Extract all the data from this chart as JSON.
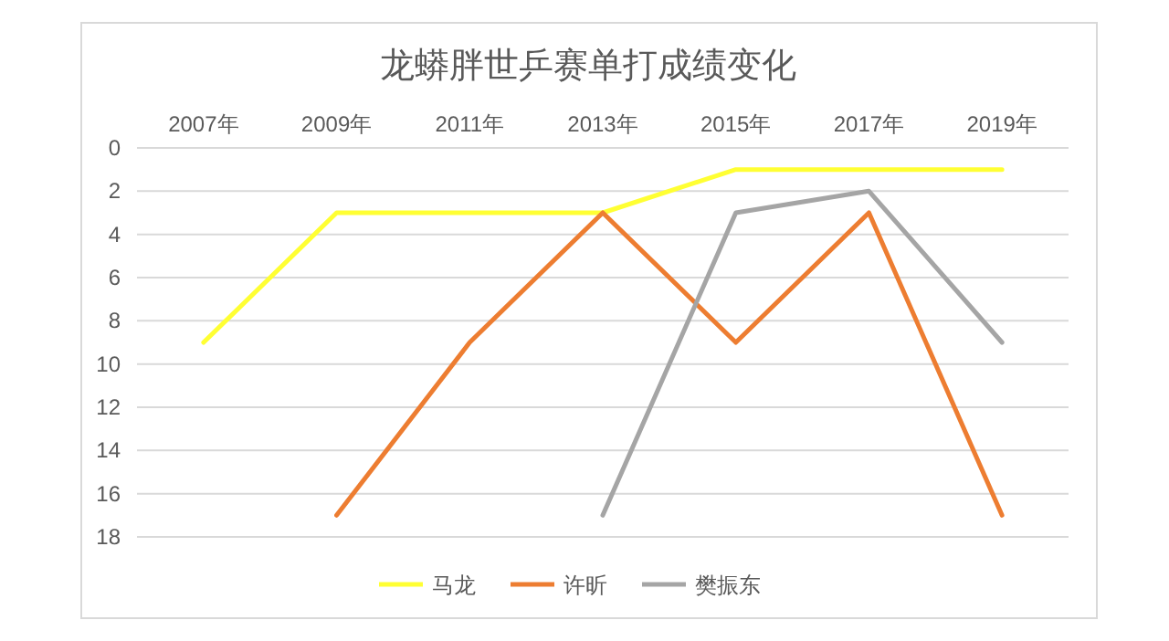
{
  "chart_data": {
    "type": "line",
    "title": "龙蟒胖世乒赛单打成绩变化",
    "categories": [
      "2007年",
      "2009年",
      "2011年",
      "2013年",
      "2015年",
      "2017年",
      "2019年"
    ],
    "series": [
      {
        "name": "马龙",
        "color": "#ffff33",
        "values": [
          9,
          3,
          3,
          3,
          1,
          1,
          1
        ]
      },
      {
        "name": "许昕",
        "color": "#ed7d31",
        "values": [
          null,
          17,
          9,
          3,
          9,
          3,
          17
        ]
      },
      {
        "name": "樊振东",
        "color": "#a5a5a5",
        "values": [
          null,
          null,
          null,
          17,
          3,
          2,
          9
        ]
      }
    ],
    "ylim": [
      18,
      0
    ],
    "yticks": [
      0,
      2,
      4,
      6,
      8,
      10,
      12,
      14,
      16,
      18
    ],
    "grid": "y",
    "legend": "bottom",
    "line_style": "solid"
  }
}
